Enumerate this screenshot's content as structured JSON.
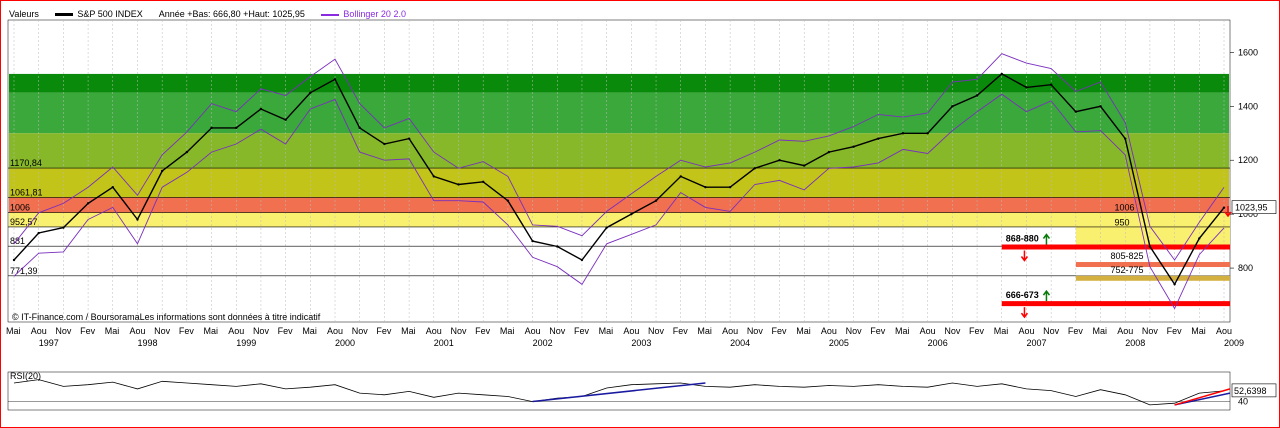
{
  "header": {
    "valeurs": "Valeurs",
    "instrument": "S&P 500 INDEX",
    "stats": "Année +Bas: 666,80 +Haut: 1025,95",
    "indicator": "Bollinger 20 2.0",
    "instrument_color": "#000000",
    "indicator_color": "#8a2be2"
  },
  "credit": "© IT-Finance.com / BoursoramaLes informations sont données à titre indicatif",
  "colors": {
    "price": "#000000",
    "bollinger": "#7b2fbe",
    "support_line": "#ff0000",
    "trend_blue": "#1a1aa0",
    "trend_red": "#ff0000",
    "arrow_up": "#0a7a0a",
    "arrow_down": "#ff0000",
    "bands": [
      "#0a8a0a",
      "#3aa83a",
      "#86b82a",
      "#c2c41a",
      "#e6d81a",
      "#f07050",
      "#faf070"
    ]
  },
  "chart_data": [
    {
      "type": "line",
      "title": "S&P 500 INDEX",
      "ylim": [
        600,
        1720
      ],
      "y_ticks": [
        800,
        1000,
        1200,
        1400,
        1600
      ],
      "y_tick_labels": [
        "800",
        "1000",
        "1200",
        "1400",
        "1600"
      ],
      "months": [
        "Mai",
        "Aou",
        "Nov",
        "Fev",
        "Mai",
        "Aou",
        "Nov",
        "Fev",
        "Mai",
        "Aou",
        "Nov",
        "Fev",
        "Mai",
        "Aou",
        "Nov",
        "Fev",
        "Mai",
        "Aou",
        "Nov",
        "Fev",
        "Mai",
        "Aou",
        "Nov",
        "Fev",
        "Mai",
        "Aou",
        "Nov",
        "Fev",
        "Mai",
        "Aou",
        "Nov",
        "Fev",
        "Mai",
        "Aou",
        "Nov",
        "Fev",
        "Mai",
        "Aou",
        "Nov",
        "Fev",
        "Mai",
        "Aou",
        "Nov",
        "Fev",
        "Mai",
        "Aou",
        "Nov",
        "Fev",
        "Mai",
        "Aou"
      ],
      "years": [
        "1997",
        "1998",
        "1999",
        "2000",
        "2001",
        "2002",
        "2003",
        "2004",
        "2005",
        "2006",
        "2007",
        "2008",
        "2009"
      ],
      "x_range": [
        "1997-05",
        "2009-08"
      ],
      "series": [
        {
          "name": "S&P 500 INDEX",
          "dates": [
            "1997-05",
            "1997-08",
            "1997-11",
            "1998-02",
            "1998-05",
            "1998-08",
            "1998-11",
            "1999-02",
            "1999-05",
            "1999-08",
            "1999-11",
            "2000-02",
            "2000-05",
            "2000-08",
            "2000-11",
            "2001-02",
            "2001-05",
            "2001-08",
            "2001-11",
            "2002-02",
            "2002-05",
            "2002-08",
            "2002-11",
            "2003-02",
            "2003-05",
            "2003-08",
            "2003-11",
            "2004-02",
            "2004-05",
            "2004-08",
            "2004-11",
            "2005-02",
            "2005-05",
            "2005-08",
            "2005-11",
            "2006-02",
            "2006-05",
            "2006-08",
            "2006-11",
            "2007-02",
            "2007-05",
            "2007-08",
            "2007-11",
            "2008-02",
            "2008-05",
            "2008-08",
            "2008-11",
            "2009-02",
            "2009-05",
            "2009-08"
          ],
          "values": [
            830,
            930,
            950,
            1040,
            1100,
            980,
            1160,
            1230,
            1320,
            1320,
            1390,
            1350,
            1450,
            1500,
            1320,
            1260,
            1280,
            1140,
            1110,
            1120,
            1050,
            900,
            880,
            830,
            950,
            1000,
            1050,
            1140,
            1100,
            1100,
            1170,
            1200,
            1180,
            1230,
            1250,
            1280,
            1300,
            1300,
            1400,
            1440,
            1520,
            1470,
            1480,
            1380,
            1400,
            1280,
            880,
            740,
            910,
            1024
          ]
        }
      ],
      "horizontal_levels": [
        {
          "label": "1170,84",
          "value": 1170.84
        },
        {
          "label": "1061,81",
          "value": 1061.81
        },
        {
          "label": "1006",
          "value": 1006
        },
        {
          "label": "952,57",
          "value": 952.57
        },
        {
          "label": "881",
          "value": 881
        },
        {
          "label": "771,39",
          "value": 771.39
        }
      ],
      "zones": [
        {
          "label": "868-880",
          "value": 880
        },
        {
          "label": "805-825",
          "value": 815
        },
        {
          "label": "752-775",
          "value": 764
        },
        {
          "label": "666-673",
          "value": 670
        }
      ],
      "annotations": [
        {
          "label": "1006",
          "value": 1006
        },
        {
          "label": "950",
          "value": 950
        }
      ],
      "last_value_label": "1023,95"
    },
    {
      "type": "line",
      "title": "RSI(20)",
      "ylim": [
        30,
        75
      ],
      "y_ticks": [
        40
      ],
      "y_tick_labels": [
        "40"
      ],
      "series": [
        {
          "name": "RSI(20)",
          "values": [
            62,
            66,
            58,
            60,
            63,
            55,
            64,
            62,
            60,
            58,
            61,
            55,
            57,
            60,
            50,
            48,
            52,
            45,
            50,
            48,
            46,
            40,
            44,
            46,
            56,
            60,
            61,
            62,
            58,
            57,
            60,
            58,
            57,
            59,
            58,
            60,
            58,
            57,
            62,
            58,
            61,
            55,
            53,
            46,
            54,
            48,
            36,
            38,
            50,
            52.64
          ]
        }
      ],
      "last_value_label": "52,6398"
    }
  ]
}
